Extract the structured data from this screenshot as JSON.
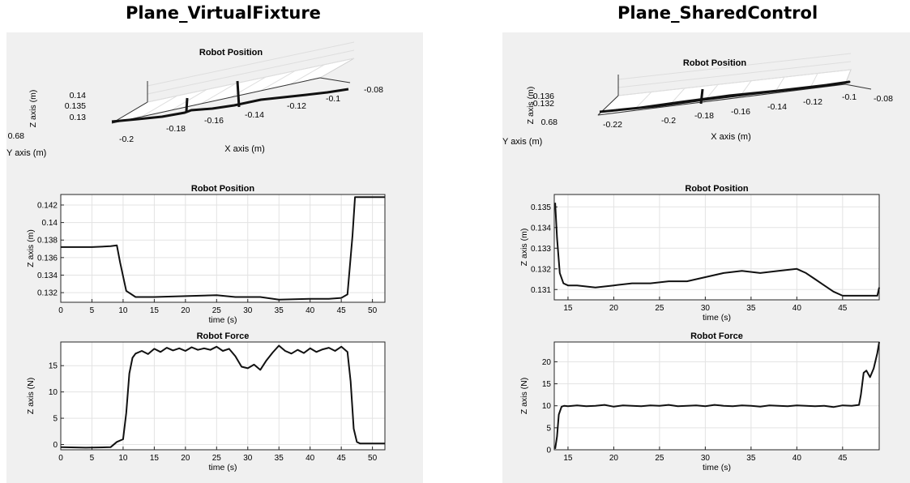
{
  "figure": {
    "left_title": "Plane_VirtualFixture",
    "right_title": "Plane_SharedControl"
  },
  "chart_data": [
    {
      "id": "vf-3d",
      "type": "line",
      "title": "Robot Position",
      "xlabel": "X axis (m)",
      "ylabel": "Y axis (m)",
      "zlabel": "Z axis (m)",
      "x_ticks": [
        "-0.2",
        "-0.18",
        "-0.16",
        "-0.14",
        "-0.12",
        "-0.1",
        "-0.08"
      ],
      "y_ticks": [
        "0.68"
      ],
      "z_ticks": [
        "0.14",
        "0.135",
        "0.13"
      ],
      "grid": true
    },
    {
      "id": "vf-pos",
      "type": "line",
      "title": "Robot Position",
      "xlabel": "time (s)",
      "ylabel": "Z axis (m)",
      "xlim": [
        0,
        52
      ],
      "ylim": [
        0.1309,
        0.1432
      ],
      "x_ticks": [
        0,
        5,
        10,
        15,
        20,
        25,
        30,
        35,
        40,
        45,
        50
      ],
      "y_ticks": [
        0.132,
        0.134,
        0.136,
        0.138,
        0.14,
        0.142
      ],
      "y_tick_labels": [
        "0.132",
        "0.134",
        "0.136",
        "0.138",
        "0.14",
        "0.142"
      ],
      "grid": true,
      "series": [
        {
          "x": [
            0,
            5,
            8,
            9,
            9.5,
            10.5,
            12,
            15,
            20,
            25,
            28,
            32,
            35,
            40,
            43,
            45,
            46,
            46.8,
            47.2,
            52
          ],
          "y": [
            0.1372,
            0.1372,
            0.1373,
            0.1374,
            0.1355,
            0.1322,
            0.1315,
            0.1315,
            0.1316,
            0.1317,
            0.1315,
            0.1315,
            0.1312,
            0.1313,
            0.1313,
            0.1314,
            0.1318,
            0.1385,
            0.1429,
            0.1429
          ]
        }
      ]
    },
    {
      "id": "vf-force",
      "type": "line",
      "title": "Robot Force",
      "xlabel": "time (s)",
      "ylabel": "Z axis (N)",
      "xlim": [
        0,
        52
      ],
      "ylim": [
        -1,
        19.5
      ],
      "x_ticks": [
        0,
        5,
        10,
        15,
        20,
        25,
        30,
        35,
        40,
        45,
        50
      ],
      "y_ticks": [
        0,
        5,
        10,
        15
      ],
      "y_tick_labels": [
        "0",
        "5",
        "10",
        "15"
      ],
      "grid": true,
      "series": [
        {
          "x": [
            0,
            4,
            8,
            9,
            10,
            10.5,
            11,
            11.5,
            12,
            13,
            14,
            15,
            16,
            17,
            18,
            19,
            20,
            21,
            22,
            23,
            24,
            25,
            26,
            27,
            28,
            29,
            30,
            31,
            32,
            33,
            34,
            35,
            36,
            37,
            38,
            39,
            40,
            41,
            42,
            43,
            44,
            45,
            46,
            46.5,
            47,
            47.5,
            48,
            52
          ],
          "y": [
            -0.5,
            -0.6,
            -0.5,
            0.5,
            1.0,
            6.0,
            13.5,
            16.5,
            17.3,
            17.8,
            17.2,
            18.2,
            17.6,
            18.4,
            17.9,
            18.3,
            17.8,
            18.5,
            18.0,
            18.3,
            18.0,
            18.6,
            17.8,
            18.2,
            16.8,
            14.8,
            14.5,
            15.2,
            14.2,
            16.0,
            17.5,
            18.8,
            17.8,
            17.3,
            18.0,
            17.4,
            18.3,
            17.6,
            18.1,
            18.4,
            17.8,
            18.6,
            17.6,
            12.0,
            3.0,
            0.5,
            0.2,
            0.2
          ]
        }
      ]
    },
    {
      "id": "sc-3d",
      "type": "line",
      "title": "Robot Position",
      "xlabel": "X axis (m)",
      "ylabel": "Y axis (m)",
      "zlabel": "Z axis (m)",
      "x_ticks": [
        "-0.22",
        "-0.2",
        "-0.18",
        "-0.16",
        "-0.14",
        "-0.12",
        "-0.1",
        "-0.08"
      ],
      "y_ticks": [
        "0.68"
      ],
      "z_ticks": [
        "0.136",
        "0.132"
      ],
      "grid": true
    },
    {
      "id": "sc-pos",
      "type": "line",
      "title": "Robot Position",
      "xlabel": "time (s)",
      "ylabel": "Z axis (m)",
      "xlim": [
        13.5,
        49
      ],
      "ylim": [
        0.1305,
        0.1356
      ],
      "x_ticks": [
        15,
        20,
        25,
        30,
        35,
        40,
        45
      ],
      "y_ticks": [
        0.131,
        0.132,
        0.133,
        0.134,
        0.135
      ],
      "y_tick_labels": [
        "0.131",
        "0.132",
        "0.133",
        "0.134",
        "0.135"
      ],
      "grid": true,
      "series": [
        {
          "x": [
            13.6,
            13.8,
            14.1,
            14.5,
            15,
            16,
            18,
            20,
            22,
            24,
            26,
            28,
            30,
            32,
            34,
            36,
            38,
            40,
            41,
            42,
            43,
            44,
            45,
            46,
            47,
            48,
            48.8,
            49
          ],
          "y": [
            0.1352,
            0.1335,
            0.1318,
            0.1313,
            0.1312,
            0.1312,
            0.1311,
            0.1312,
            0.1313,
            0.1313,
            0.1314,
            0.1314,
            0.1316,
            0.1318,
            0.1319,
            0.1318,
            0.1319,
            0.132,
            0.1318,
            0.1315,
            0.1312,
            0.1309,
            0.1307,
            0.1307,
            0.1307,
            0.1307,
            0.1307,
            0.1311
          ]
        }
      ]
    },
    {
      "id": "sc-force",
      "type": "line",
      "title": "Robot Force",
      "xlabel": "time (s)",
      "ylabel": "Z axis (N)",
      "xlim": [
        13.5,
        49
      ],
      "ylim": [
        0,
        24.5
      ],
      "x_ticks": [
        15,
        20,
        25,
        30,
        35,
        40,
        45
      ],
      "y_ticks": [
        0,
        5,
        10,
        15,
        20
      ],
      "y_tick_labels": [
        "0",
        "5",
        "10",
        "15",
        "20"
      ],
      "grid": true,
      "series": [
        {
          "x": [
            13.6,
            13.8,
            14.0,
            14.3,
            14.6,
            15,
            16,
            17,
            18,
            19,
            20,
            21,
            22,
            23,
            24,
            25,
            26,
            27,
            28,
            29,
            30,
            31,
            32,
            33,
            34,
            35,
            36,
            37,
            38,
            39,
            40,
            41,
            42,
            43,
            44,
            45,
            46,
            46.8,
            47.0,
            47.3,
            47.6,
            48.0,
            48.4,
            48.8,
            49
          ],
          "y": [
            0.2,
            3.0,
            8.0,
            9.8,
            10.0,
            9.9,
            10.1,
            9.9,
            10.0,
            10.2,
            9.8,
            10.1,
            10.0,
            9.9,
            10.1,
            10.0,
            10.2,
            9.9,
            10.0,
            10.1,
            9.9,
            10.2,
            10.0,
            9.9,
            10.1,
            10.0,
            9.8,
            10.1,
            10.0,
            9.9,
            10.1,
            10.0,
            9.9,
            10.0,
            9.7,
            10.1,
            10.0,
            10.2,
            12.5,
            17.5,
            18.0,
            16.5,
            18.5,
            22.0,
            24.5
          ]
        }
      ]
    }
  ]
}
